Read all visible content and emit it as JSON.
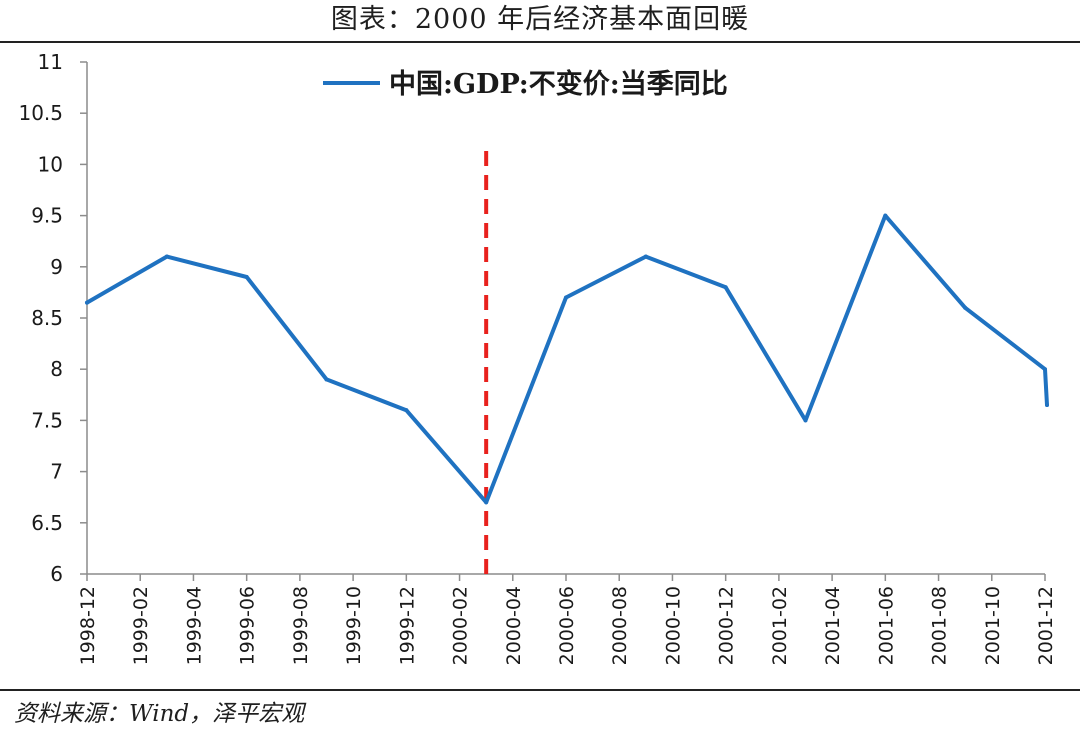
{
  "header": {
    "title": "图表：2000 年后经济基本面回暖"
  },
  "footer": {
    "source": "资料来源：Wind，泽平宏观"
  },
  "colors": {
    "series": "#1f72c1",
    "marker_line": "#e8211d",
    "axis": "#8c8c8c",
    "text": "#1a1a1a"
  },
  "chart_data": {
    "type": "line",
    "title": "",
    "xlabel": "",
    "ylabel": "",
    "x_ticks": [
      "1998-12",
      "1999-02",
      "1999-04",
      "1999-06",
      "1999-08",
      "1999-10",
      "1999-12",
      "2000-02",
      "2000-04",
      "2000-06",
      "2000-08",
      "2000-10",
      "2000-12",
      "2001-02",
      "2001-04",
      "2001-06",
      "2001-08",
      "2001-10",
      "2001-12"
    ],
    "y_ticks": [
      "11",
      "10.5",
      "10",
      "9.5",
      "9",
      "8.5",
      "8",
      "7.5",
      "7",
      "6.5",
      "6"
    ],
    "ylim": [
      6,
      11
    ],
    "grid": false,
    "legend_position": "top-center",
    "series": [
      {
        "name": "中国:GDP:不变价:当季同比",
        "points": [
          {
            "x": "1998-12",
            "y": 8.65
          },
          {
            "x": "1999-03",
            "y": 9.1
          },
          {
            "x": "1999-06",
            "y": 8.9
          },
          {
            "x": "1999-09",
            "y": 7.9
          },
          {
            "x": "1999-12",
            "y": 7.6
          },
          {
            "x": "2000-03",
            "y": 6.7
          },
          {
            "x": "2000-06",
            "y": 8.7
          },
          {
            "x": "2000-09",
            "y": 9.1
          },
          {
            "x": "2000-12",
            "y": 8.8
          },
          {
            "x": "2001-03",
            "y": 7.5
          },
          {
            "x": "2001-06",
            "y": 9.5
          },
          {
            "x": "2001-09",
            "y": 8.6
          },
          {
            "x": "2001-12",
            "y": 8.0
          },
          {
            "x": "2002-03",
            "y": 7.65
          }
        ]
      }
    ],
    "reference_line": {
      "x": "2000-03",
      "style": "dashed"
    }
  }
}
